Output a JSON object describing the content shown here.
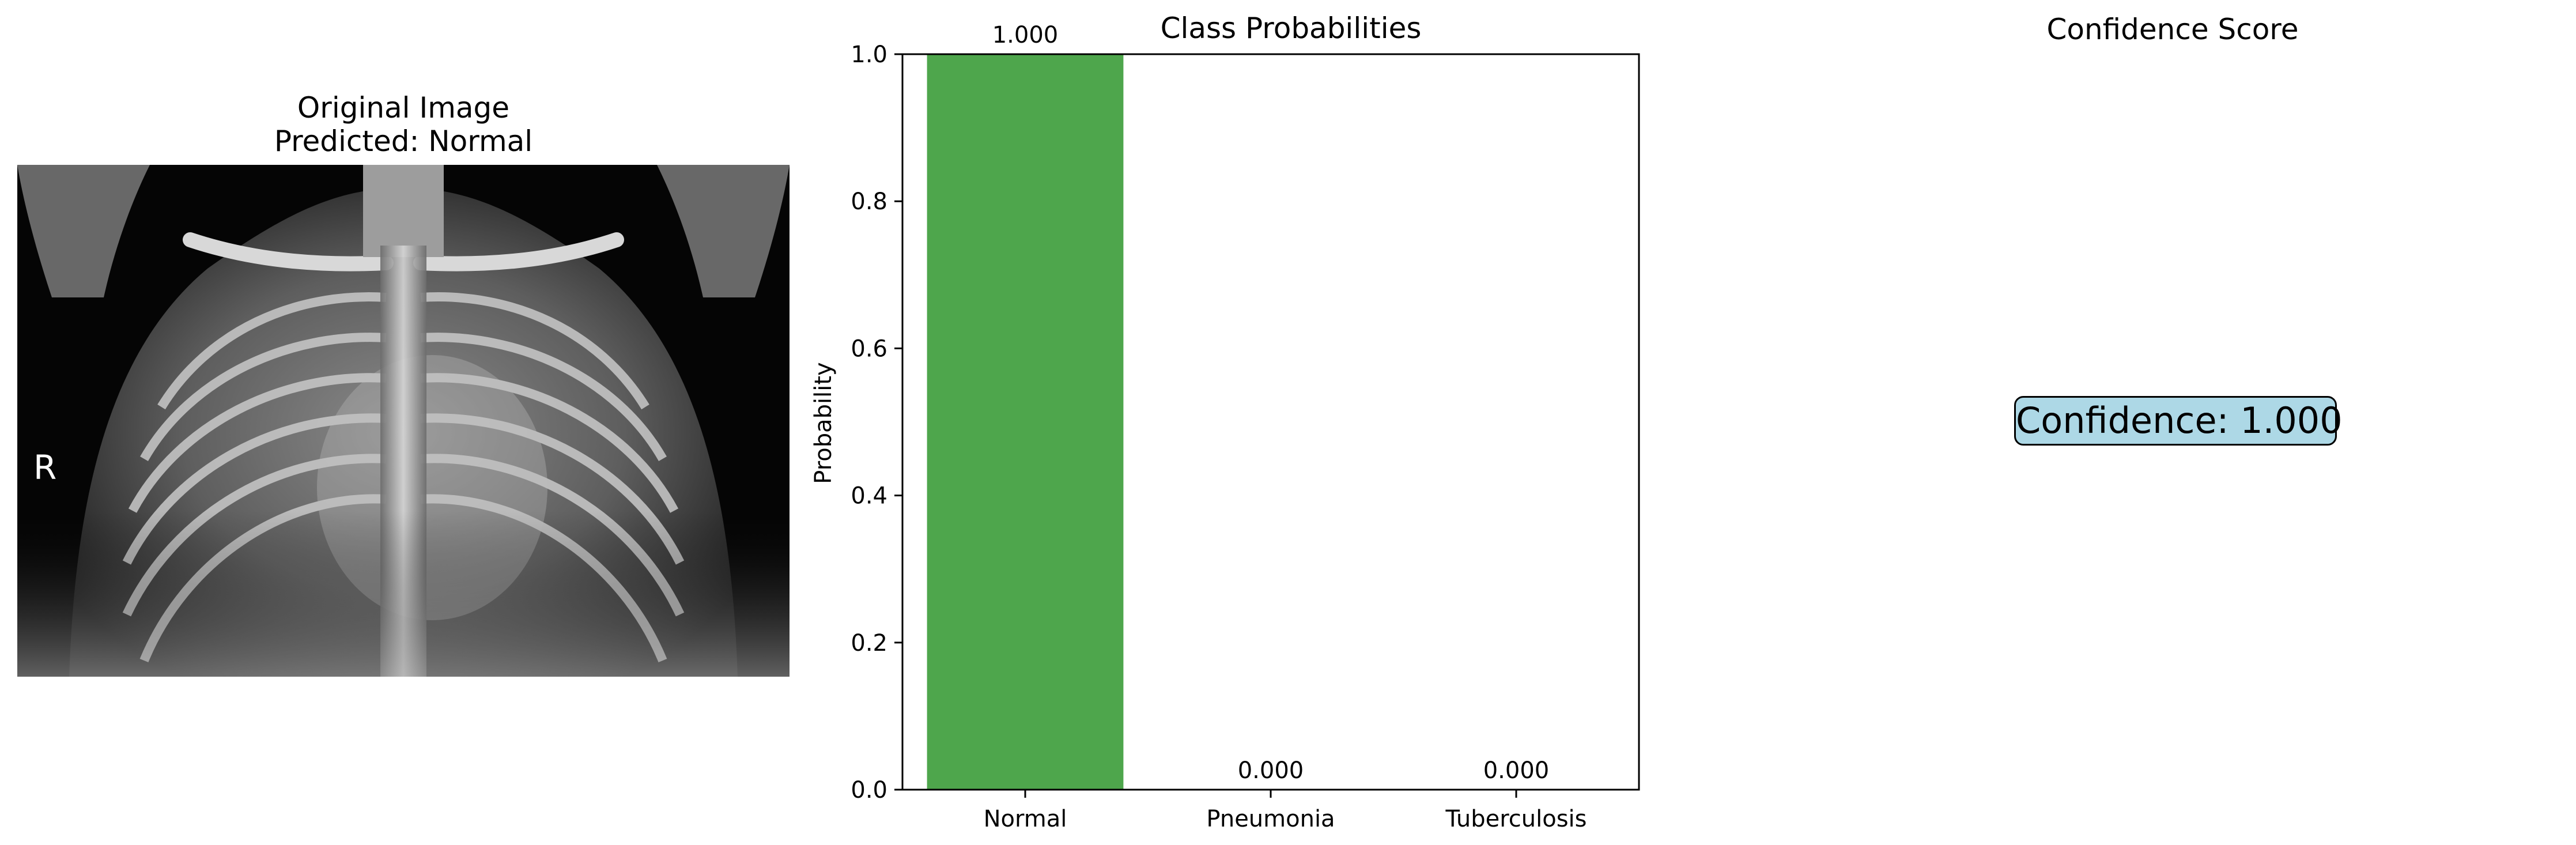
{
  "left_panel": {
    "title": "Original Image",
    "subtitle": "Predicted: Normal",
    "image_marker": "R"
  },
  "right_panel": {
    "title": "Confidence Score",
    "confidence_text": "Confidence: 1.000",
    "box_color": "#add8e6"
  },
  "chart_data": {
    "type": "bar",
    "title": "Class Probabilities",
    "xlabel": "",
    "ylabel": "Probability",
    "categories": [
      "Normal",
      "Pneumonia",
      "Tuberculosis"
    ],
    "values": [
      1.0,
      0.0,
      0.0
    ],
    "data_labels": [
      "1.000",
      "0.000",
      "0.000"
    ],
    "ylim": [
      0,
      1
    ],
    "yticks": [
      0.0,
      0.2,
      0.4,
      0.6,
      0.8,
      1.0
    ],
    "ytick_labels": [
      "0.0",
      "0.2",
      "0.4",
      "0.6",
      "0.8",
      "1.0"
    ],
    "bar_colors": [
      "#4ea64c",
      "#d9534f",
      "#f0ad4e"
    ],
    "grid": false,
    "legend": "none"
  }
}
